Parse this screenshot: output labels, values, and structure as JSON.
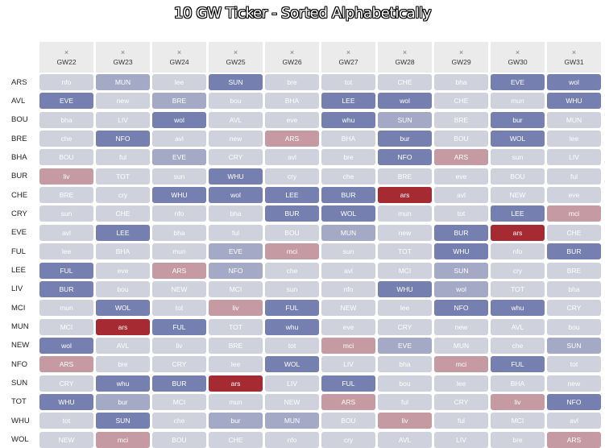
{
  "title": "10 GW Ticker - Sorted Alphabetically",
  "close_symbol": "×",
  "colors": {
    "1": "#7680b0",
    "2": "#a4a9c6",
    "3": "#cfd1dc",
    "4": "#c69aa2",
    "5": "#a62a32",
    "header_bg": "#ebebeb"
  },
  "gameweeks": [
    "GW22",
    "GW23",
    "GW24",
    "GW25",
    "GW26",
    "GW27",
    "GW28",
    "GW29",
    "GW30",
    "GW31"
  ],
  "rows": [
    {
      "team": "ARS",
      "fixtures": [
        [
          "nfo",
          3
        ],
        [
          "MUN",
          2
        ],
        [
          "lee",
          3
        ],
        [
          "SUN",
          1
        ],
        [
          "bre",
          3
        ],
        [
          "tot",
          3
        ],
        [
          "CHE",
          3
        ],
        [
          "bha",
          3
        ],
        [
          "EVE",
          1
        ],
        [
          "wol",
          1
        ]
      ]
    },
    {
      "team": "AVL",
      "fixtures": [
        [
          "EVE",
          1
        ],
        [
          "new",
          3
        ],
        [
          "BRE",
          2
        ],
        [
          "bou",
          3
        ],
        [
          "BHA",
          3
        ],
        [
          "LEE",
          1
        ],
        [
          "wol",
          1
        ],
        [
          "CHE",
          3
        ],
        [
          "mun",
          3
        ],
        [
          "WHU",
          1
        ]
      ]
    },
    {
      "team": "BOU",
      "fixtures": [
        [
          "bha",
          3
        ],
        [
          "LIV",
          3
        ],
        [
          "wol",
          1
        ],
        [
          "AVL",
          3
        ],
        [
          "eve",
          3
        ],
        [
          "whu",
          1
        ],
        [
          "SUN",
          2
        ],
        [
          "BRE",
          3
        ],
        [
          "bur",
          1
        ],
        [
          "MUN",
          3
        ]
      ]
    },
    {
      "team": "BRE",
      "fixtures": [
        [
          "che",
          3
        ],
        [
          "NFO",
          1
        ],
        [
          "avl",
          3
        ],
        [
          "new",
          3
        ],
        [
          "ARS",
          4
        ],
        [
          "BHA",
          3
        ],
        [
          "bur",
          1
        ],
        [
          "BOU",
          3
        ],
        [
          "WOL",
          1
        ],
        [
          "lee",
          3
        ]
      ]
    },
    {
      "team": "BHA",
      "fixtures": [
        [
          "BOU",
          3
        ],
        [
          "ful",
          3
        ],
        [
          "EVE",
          2
        ],
        [
          "CRY",
          3
        ],
        [
          "avl",
          3
        ],
        [
          "bre",
          3
        ],
        [
          "NFO",
          1
        ],
        [
          "ARS",
          4
        ],
        [
          "sun",
          3
        ],
        [
          "LIV",
          3
        ]
      ]
    },
    {
      "team": "BUR",
      "fixtures": [
        [
          "liv",
          4
        ],
        [
          "TOT",
          3
        ],
        [
          "sun",
          3
        ],
        [
          "WHU",
          1
        ],
        [
          "cry",
          3
        ],
        [
          "che",
          3
        ],
        [
          "BRE",
          3
        ],
        [
          "eve",
          3
        ],
        [
          "BOU",
          3
        ],
        [
          "ful",
          3
        ]
      ]
    },
    {
      "team": "CHE",
      "fixtures": [
        [
          "BRE",
          3
        ],
        [
          "cry",
          3
        ],
        [
          "WHU",
          1
        ],
        [
          "wol",
          1
        ],
        [
          "LEE",
          1
        ],
        [
          "BUR",
          1
        ],
        [
          "ars",
          5
        ],
        [
          "avl",
          3
        ],
        [
          "NEW",
          3
        ],
        [
          "eve",
          3
        ]
      ]
    },
    {
      "team": "CRY",
      "fixtures": [
        [
          "sun",
          3
        ],
        [
          "CHE",
          3
        ],
        [
          "nfo",
          3
        ],
        [
          "bha",
          3
        ],
        [
          "BUR",
          1
        ],
        [
          "WOL",
          1
        ],
        [
          "mun",
          3
        ],
        [
          "tot",
          3
        ],
        [
          "LEE",
          1
        ],
        [
          "mci",
          4
        ]
      ]
    },
    {
      "team": "EVE",
      "fixtures": [
        [
          "avl",
          3
        ],
        [
          "LEE",
          1
        ],
        [
          "bha",
          3
        ],
        [
          "ful",
          3
        ],
        [
          "BOU",
          3
        ],
        [
          "MUN",
          2
        ],
        [
          "new",
          3
        ],
        [
          "BUR",
          1
        ],
        [
          "ars",
          5
        ],
        [
          "CHE",
          3
        ]
      ]
    },
    {
      "team": "FUL",
      "fixtures": [
        [
          "lee",
          3
        ],
        [
          "BHA",
          3
        ],
        [
          "mun",
          3
        ],
        [
          "EVE",
          2
        ],
        [
          "mci",
          4
        ],
        [
          "sun",
          3
        ],
        [
          "TOT",
          3
        ],
        [
          "WHU",
          1
        ],
        [
          "nfo",
          3
        ],
        [
          "BUR",
          1
        ]
      ]
    },
    {
      "team": "LEE",
      "fixtures": [
        [
          "FUL",
          1
        ],
        [
          "eve",
          3
        ],
        [
          "ARS",
          4
        ],
        [
          "NFO",
          2
        ],
        [
          "che",
          3
        ],
        [
          "avl",
          3
        ],
        [
          "MCI",
          3
        ],
        [
          "SUN",
          2
        ],
        [
          "cry",
          3
        ],
        [
          "BRE",
          3
        ]
      ]
    },
    {
      "team": "LIV",
      "fixtures": [
        [
          "BUR",
          1
        ],
        [
          "bou",
          3
        ],
        [
          "NEW",
          3
        ],
        [
          "MCI",
          3
        ],
        [
          "sun",
          3
        ],
        [
          "nfo",
          3
        ],
        [
          "WHU",
          1
        ],
        [
          "wol",
          2
        ],
        [
          "TOT",
          3
        ],
        [
          "bha",
          3
        ]
      ]
    },
    {
      "team": "MCI",
      "fixtures": [
        [
          "mun",
          3
        ],
        [
          "WOL",
          1
        ],
        [
          "tot",
          3
        ],
        [
          "liv",
          4
        ],
        [
          "FUL",
          1
        ],
        [
          "NEW",
          3
        ],
        [
          "lee",
          3
        ],
        [
          "NFO",
          1
        ],
        [
          "whu",
          1
        ],
        [
          "CRY",
          3
        ]
      ]
    },
    {
      "team": "MUN",
      "fixtures": [
        [
          "MCI",
          3
        ],
        [
          "ars",
          5
        ],
        [
          "FUL",
          1
        ],
        [
          "TOT",
          3
        ],
        [
          "whu",
          1
        ],
        [
          "eve",
          3
        ],
        [
          "CRY",
          3
        ],
        [
          "new",
          3
        ],
        [
          "AVL",
          3
        ],
        [
          "bou",
          3
        ]
      ]
    },
    {
      "team": "NEW",
      "fixtures": [
        [
          "wol",
          1
        ],
        [
          "AVL",
          3
        ],
        [
          "liv",
          3
        ],
        [
          "BRE",
          3
        ],
        [
          "tot",
          3
        ],
        [
          "mci",
          4
        ],
        [
          "EVE",
          2
        ],
        [
          "MUN",
          3
        ],
        [
          "che",
          3
        ],
        [
          "SUN",
          2
        ]
      ]
    },
    {
      "team": "NFO",
      "fixtures": [
        [
          "ARS",
          4
        ],
        [
          "bre",
          3
        ],
        [
          "CRY",
          3
        ],
        [
          "lee",
          3
        ],
        [
          "WOL",
          1
        ],
        [
          "LIV",
          3
        ],
        [
          "bha",
          3
        ],
        [
          "mci",
          4
        ],
        [
          "FUL",
          1
        ],
        [
          "tot",
          3
        ]
      ]
    },
    {
      "team": "SUN",
      "fixtures": [
        [
          "CRY",
          3
        ],
        [
          "whu",
          1
        ],
        [
          "BUR",
          1
        ],
        [
          "ars",
          5
        ],
        [
          "LIV",
          3
        ],
        [
          "FUL",
          1
        ],
        [
          "bou",
          3
        ],
        [
          "lee",
          3
        ],
        [
          "BHA",
          3
        ],
        [
          "new",
          3
        ]
      ]
    },
    {
      "team": "TOT",
      "fixtures": [
        [
          "WHU",
          1
        ],
        [
          "bur",
          2
        ],
        [
          "MCI",
          3
        ],
        [
          "mun",
          3
        ],
        [
          "NEW",
          3
        ],
        [
          "ARS",
          4
        ],
        [
          "ful",
          3
        ],
        [
          "CRY",
          3
        ],
        [
          "liv",
          4
        ],
        [
          "NFO",
          1
        ]
      ]
    },
    {
      "team": "WHU",
      "fixtures": [
        [
          "tot",
          3
        ],
        [
          "SUN",
          1
        ],
        [
          "che",
          3
        ],
        [
          "bur",
          2
        ],
        [
          "MUN",
          2
        ],
        [
          "BOU",
          3
        ],
        [
          "liv",
          4
        ],
        [
          "ful",
          3
        ],
        [
          "MCI",
          3
        ],
        [
          "avl",
          3
        ]
      ]
    },
    {
      "team": "WOL",
      "fixtures": [
        [
          "NEW",
          3
        ],
        [
          "mci",
          4
        ],
        [
          "BOU",
          3
        ],
        [
          "CHE",
          3
        ],
        [
          "nfo",
          3
        ],
        [
          "cry",
          3
        ],
        [
          "AVL",
          3
        ],
        [
          "LIV",
          3
        ],
        [
          "bre",
          3
        ],
        [
          "ARS",
          4
        ]
      ]
    }
  ]
}
